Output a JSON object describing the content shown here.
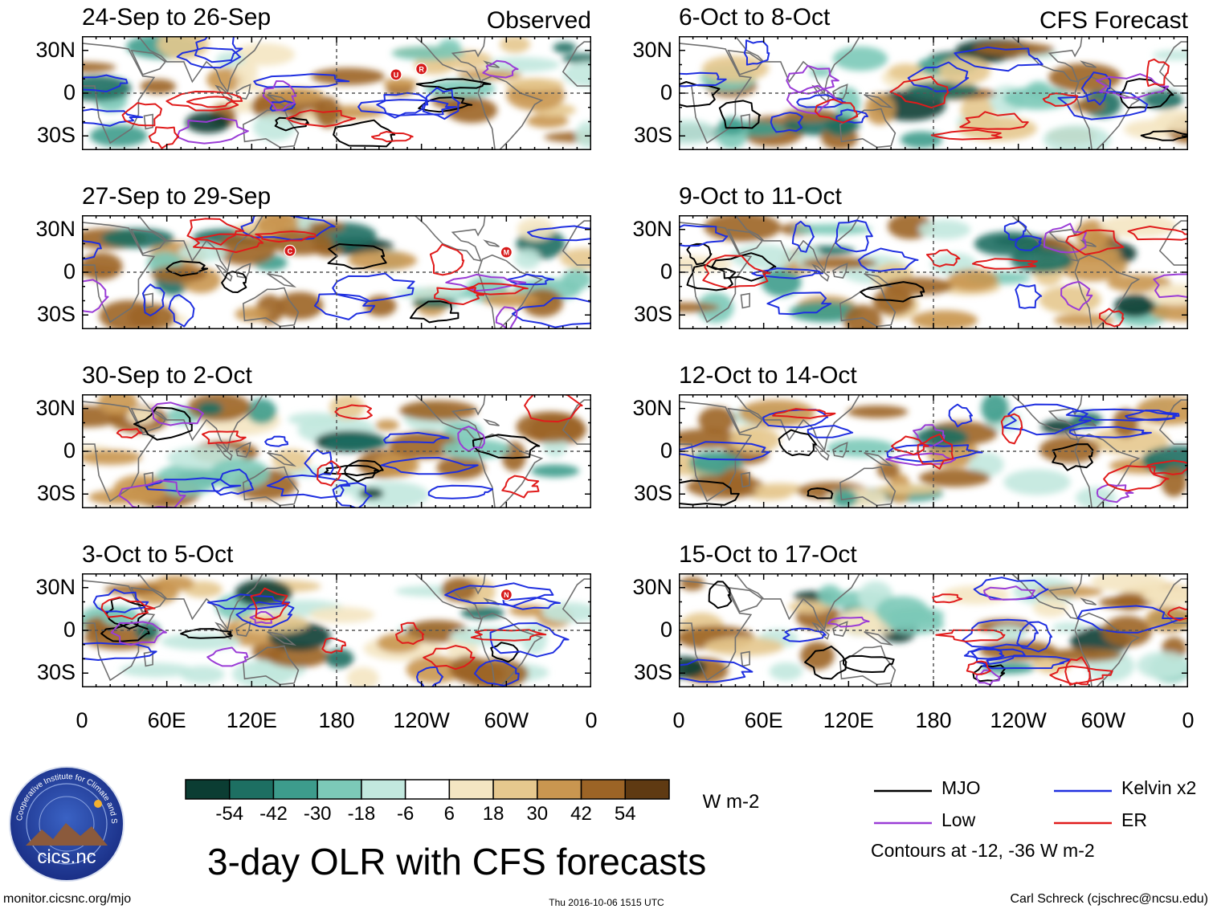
{
  "chart_data": {
    "type": "heatmap",
    "title": "3-day OLR with CFS forecasts",
    "units": "W m-2",
    "column_headers": {
      "left": "Observed",
      "right": "CFS Forecast"
    },
    "lat_ticks": [
      "30N",
      "0",
      "30S"
    ],
    "lat_values": [
      30,
      0,
      -30
    ],
    "lat_range": [
      -40,
      40
    ],
    "lon_ticks": [
      "0",
      "60E",
      "120E",
      "180",
      "120W",
      "60W",
      "0"
    ],
    "lon_values": [
      0,
      60,
      120,
      180,
      240,
      300,
      360
    ],
    "lon_range": [
      0,
      360
    ],
    "panels": [
      {
        "period": "24-Sep to 26-Sep",
        "kind": "Observed"
      },
      {
        "period": "27-Sep to 29-Sep",
        "kind": "Observed"
      },
      {
        "period": "30-Sep to 2-Oct",
        "kind": "Observed"
      },
      {
        "period": "3-Oct to 5-Oct",
        "kind": "Observed"
      },
      {
        "period": "6-Oct to 8-Oct",
        "kind": "CFS Forecast"
      },
      {
        "period": "9-Oct to 11-Oct",
        "kind": "CFS Forecast"
      },
      {
        "period": "12-Oct to 14-Oct",
        "kind": "CFS Forecast"
      },
      {
        "period": "15-Oct to 17-Oct",
        "kind": "CFS Forecast"
      }
    ],
    "colorbar": {
      "labels": [
        "-54",
        "-42",
        "-30",
        "-18",
        "-6",
        "6",
        "18",
        "30",
        "42",
        "54"
      ],
      "colors": [
        "#0b3d33",
        "#1d6f62",
        "#3d9c8c",
        "#7cc9b8",
        "#c2e8de",
        "#ffffff",
        "#f4e6c2",
        "#e6c88e",
        "#c99650",
        "#9c6426",
        "#5f3a12"
      ]
    },
    "contour_levels": [
      -12,
      -36
    ],
    "legend": [
      {
        "name": "MJO",
        "color": "#000000"
      },
      {
        "name": "Kelvin x2",
        "color": "#1f2fe0"
      },
      {
        "name": "Low",
        "color": "#9a3cd6"
      },
      {
        "name": "ER",
        "color": "#e01b1b"
      }
    ],
    "contour_note": "Contours at -12, -36 W m-2",
    "storm_markers": [
      {
        "panel": 0,
        "letter": "U",
        "lon": 222,
        "lat": 13
      },
      {
        "panel": 0,
        "letter": "R",
        "lon": 240,
        "lat": 17
      },
      {
        "panel": 1,
        "letter": "C",
        "lon": 147,
        "lat": 15
      },
      {
        "panel": 1,
        "letter": "M",
        "lon": 300,
        "lat": 14
      },
      {
        "panel": 3,
        "letter": "N",
        "lon": 300,
        "lat": 25
      }
    ]
  },
  "footer": {
    "left": "monitor.cicsnc.org/mjo",
    "center": "Thu 2016-10-06 1515 UTC",
    "right": "Carl Schreck (cjschrec@ncsu.edu)"
  },
  "logo": {
    "name": "cicsnc-logo",
    "text": "cics.nc",
    "ring": "Cooperative Institute for Climate and Satellites"
  }
}
